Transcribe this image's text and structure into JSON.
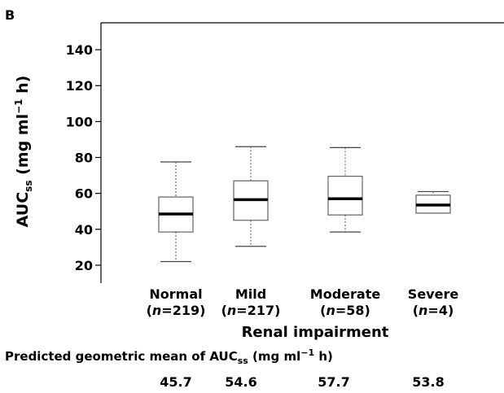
{
  "panel_label": "B",
  "chart_data": {
    "type": "box",
    "ylabel_main": "AUC",
    "ylabel_sub": "ss",
    "ylabel_unit_pre": " (mg ml",
    "ylabel_unit_sup": "−1",
    "ylabel_unit_post": " h)",
    "xlabel": "Renal impairment",
    "ylim": [
      10,
      155
    ],
    "yticks": [
      20,
      40,
      60,
      80,
      100,
      120,
      140
    ],
    "grid": false,
    "categories": [
      {
        "name": "Normal",
        "n_label": "n",
        "n_value": "=219"
      },
      {
        "name": "Mild",
        "n_label": "n",
        "n_value": "=217"
      },
      {
        "name": "Moderate",
        "n_label": "n",
        "n_value": "=58"
      },
      {
        "name": "Severe",
        "n_label": "n",
        "n_value": "=4"
      }
    ],
    "boxes": [
      {
        "whisker_low": 22,
        "q1": 38.5,
        "median": 48.5,
        "q3": 58,
        "whisker_high": 77.5
      },
      {
        "whisker_low": 30.5,
        "q1": 45,
        "median": 56.5,
        "q3": 67,
        "whisker_high": 86
      },
      {
        "whisker_low": 38.5,
        "q1": 48,
        "median": 57,
        "q3": 69.5,
        "whisker_high": 85.5
      },
      {
        "whisker_low": 49,
        "q1": 49,
        "median": 53.5,
        "q3": 59,
        "whisker_high": 61
      }
    ]
  },
  "footer": {
    "text_pre": "Predicted geometric mean of ",
    "sym_main": "AUC",
    "sym_sub": "ss",
    "unit_pre": " (mg ml",
    "unit_sup": "−1",
    "unit_post": " h)",
    "values": [
      "45.7",
      "54.6",
      "57.7",
      "53.8"
    ]
  }
}
